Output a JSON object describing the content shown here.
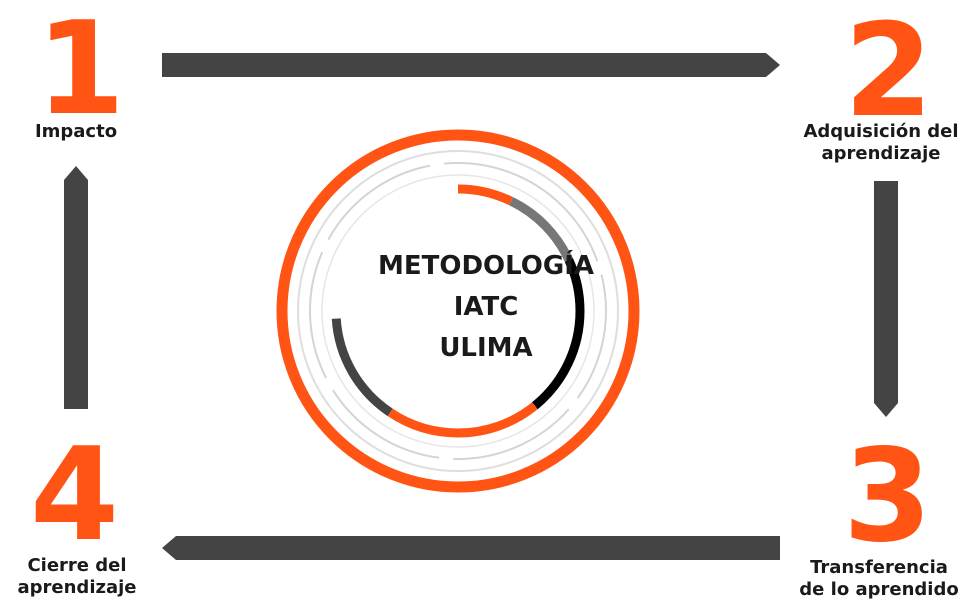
{
  "steps": [
    {
      "number": "1",
      "label_lines": [
        "Impacto"
      ]
    },
    {
      "number": "2",
      "label_lines": [
        "Adquisición del",
        "aprendizaje"
      ]
    },
    {
      "number": "3",
      "label_lines": [
        "Transferencia",
        "de lo aprendido"
      ]
    },
    {
      "number": "4",
      "label_lines": [
        "Cierre del",
        "aprendizaje"
      ]
    }
  ],
  "center": {
    "lines": [
      "METODOLOGÍA",
      "IATC",
      "ULIMA"
    ]
  },
  "colors": {
    "accent": "#ff5414",
    "arrow": "#444444",
    "text": "#1a1a1a",
    "ring_light": "#dedede",
    "segment_black": "#000000",
    "segment_dark": "#444444",
    "segment_gray": "#777777"
  }
}
